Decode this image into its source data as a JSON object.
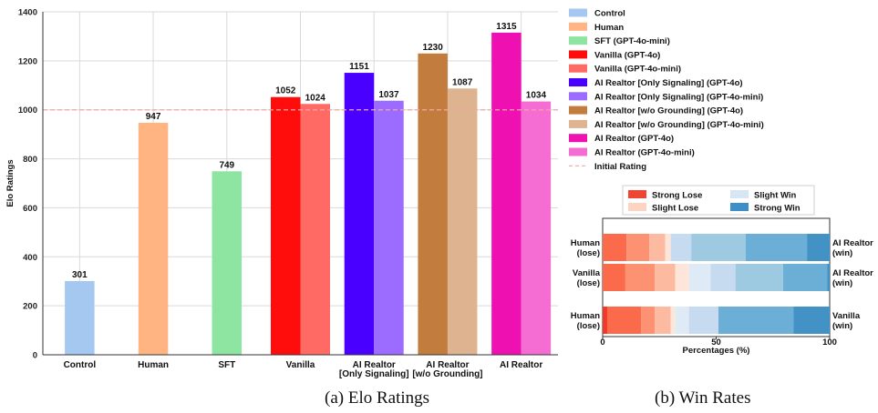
{
  "captions": {
    "a": "(a) Elo Ratings",
    "b": "(b) Win Rates"
  },
  "colors": {
    "initial_line": "#f4a6a6",
    "grid": "#d9d9d9"
  },
  "chart_data": [
    {
      "type": "bar",
      "ylabel": "Elo Ratings",
      "ylim": [
        0,
        1400
      ],
      "yticks": [
        0,
        200,
        400,
        600,
        800,
        1000,
        1200,
        1400
      ],
      "grid": true,
      "legend_placement": "right",
      "reference_line": {
        "label": "Initial Rating",
        "value": 1000,
        "style": "dashed",
        "color": "#f4a6a6"
      },
      "groups": [
        {
          "label": "Control",
          "bars": [
            {
              "series": "Control",
              "value": 301,
              "color": "#a4c8f0"
            }
          ]
        },
        {
          "label": "Human",
          "bars": [
            {
              "series": "Human",
              "value": 947,
              "color": "#ffb482"
            }
          ]
        },
        {
          "label": "SFT",
          "bars": [
            {
              "series": "SFT (GPT-4o-mini)",
              "value": 749,
              "color": "#8de5a1"
            }
          ]
        },
        {
          "label": "Vanilla",
          "bars": [
            {
              "series": "Vanilla (GPT-4o)",
              "value": 1052,
              "color": "#ff0c0c"
            },
            {
              "series": "Vanilla (GPT-4o-mini)",
              "value": 1024,
              "color": "#ff6b64"
            }
          ]
        },
        {
          "label": "AI Realtor\n[Only Signaling]",
          "bars": [
            {
              "series": "AI Realtor [Only Signaling] (GPT-4o)",
              "value": 1151,
              "color": "#4a00ff"
            },
            {
              "series": "AI Realtor [Only Signaling] (GPT-4o-mini)",
              "value": 1037,
              "color": "#9c6bff"
            }
          ]
        },
        {
          "label": "AI Realtor\n[w/o Grounding]",
          "bars": [
            {
              "series": "AI Realtor [w/o Grounding] (GPT-4o)",
              "value": 1230,
              "color": "#c27c3e"
            },
            {
              "series": "AI Realtor [w/o Grounding] (GPT-4o-mini)",
              "value": 1087,
              "color": "#ddb48f"
            }
          ]
        },
        {
          "label": "AI Realtor",
          "bars": [
            {
              "series": "AI Realtor (GPT-4o)",
              "value": 1315,
              "color": "#ee10b1"
            },
            {
              "series": "AI Realtor (GPT-4o-mini)",
              "value": 1034,
              "color": "#f56dd3"
            }
          ]
        }
      ],
      "legend": [
        {
          "label": "Control",
          "color": "#a4c8f0"
        },
        {
          "label": "Human",
          "color": "#ffb482"
        },
        {
          "label": "SFT (GPT-4o-mini)",
          "color": "#8de5a1"
        },
        {
          "label": "Vanilla (GPT-4o)",
          "color": "#ff0c0c"
        },
        {
          "label": "Vanilla (GPT-4o-mini)",
          "color": "#ff6b64"
        },
        {
          "label": "AI Realtor [Only Signaling] (GPT-4o)",
          "color": "#4a00ff"
        },
        {
          "label": "AI Realtor [Only Signaling] (GPT-4o-mini)",
          "color": "#9c6bff"
        },
        {
          "label": "AI Realtor [w/o Grounding] (GPT-4o)",
          "color": "#c27c3e"
        },
        {
          "label": "AI Realtor [w/o Grounding] (GPT-4o-mini)",
          "color": "#ddb48f"
        },
        {
          "label": "AI Realtor (GPT-4o)",
          "color": "#ee10b1"
        },
        {
          "label": "AI Realtor (GPT-4o-mini)",
          "color": "#f56dd3"
        },
        {
          "label": "Initial Rating",
          "color": "#f4a6a6",
          "dashed": true
        }
      ]
    },
    {
      "type": "bar",
      "orientation": "horizontal",
      "stacked": true,
      "xlabel": "Percentages (%)",
      "xlim": [
        0,
        100
      ],
      "xticks": [
        0,
        50,
        100
      ],
      "legend_placement": "top",
      "legend": [
        {
          "label": "Strong Lose",
          "color": "#ef4634"
        },
        {
          "label": "Slight Lose",
          "color": "#fcd4c1"
        },
        {
          "label": "Slight Win",
          "color": "#d8e6f4"
        },
        {
          "label": "Strong Win",
          "color": "#3e8fc5"
        }
      ],
      "rows": [
        {
          "left": "Human\n(lose)",
          "right": "AI Realtor\n(win)",
          "segments": [
            {
              "value": 10.5,
              "color": "#fb6a4a"
            },
            {
              "value": 10,
              "color": "#fc9272"
            },
            {
              "value": 7,
              "color": "#fcbba1"
            },
            {
              "value": 2.5,
              "color": "#fee5d9"
            },
            {
              "value": 9,
              "color": "#c6dbef"
            },
            {
              "value": 24,
              "color": "#9ecae1"
            },
            {
              "value": 27,
              "color": "#6baed6"
            },
            {
              "value": 10,
              "color": "#4292c6"
            }
          ]
        },
        {
          "left": "Vanilla\n(lose)",
          "right": "AI Realtor\n(win)",
          "segments": [
            {
              "value": 10,
              "color": "#fb6a4a"
            },
            {
              "value": 13,
              "color": "#fc9272"
            },
            {
              "value": 9,
              "color": "#fcbba1"
            },
            {
              "value": 6,
              "color": "#fee5d9"
            },
            {
              "value": 9.5,
              "color": "#deebf7"
            },
            {
              "value": 11,
              "color": "#c6dbef"
            },
            {
              "value": 21,
              "color": "#9ecae1"
            },
            {
              "value": 19.5,
              "color": "#6baed6"
            },
            {
              "value": 1,
              "color": "#4292c6"
            }
          ]
        },
        {
          "left": "Human\n(lose)",
          "right": "Vanilla\n(win)",
          "segments": [
            {
              "value": 2,
              "color": "#ef3b2c"
            },
            {
              "value": 15,
              "color": "#fb6a4a"
            },
            {
              "value": 6,
              "color": "#fc9272"
            },
            {
              "value": 7,
              "color": "#fcbba1"
            },
            {
              "value": 2,
              "color": "#fee5d9"
            },
            {
              "value": 6,
              "color": "#deebf7"
            },
            {
              "value": 13,
              "color": "#c6dbef"
            },
            {
              "value": 33,
              "color": "#6baed6"
            },
            {
              "value": 16,
              "color": "#4292c6"
            }
          ]
        }
      ]
    }
  ]
}
